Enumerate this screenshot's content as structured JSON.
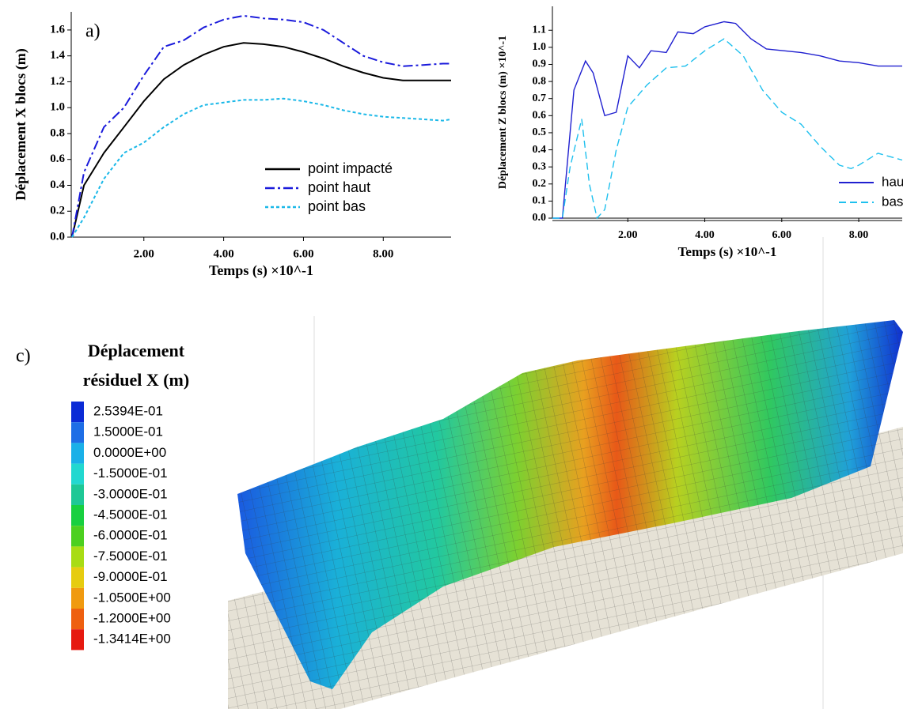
{
  "chart_data": [
    {
      "type": "line",
      "panel_label": "a)",
      "ylabel": "Déplacement X blocs (m)",
      "xlabel": "Temps (s) ×10^-1",
      "xlim": [
        0.18,
        9.7
      ],
      "ylim": [
        0,
        1.74
      ],
      "xticks": [
        {
          "value": 2,
          "label": "2.00"
        },
        {
          "value": 4,
          "label": "4.00"
        },
        {
          "value": 6,
          "label": "6.00"
        },
        {
          "value": 8,
          "label": "8.00"
        }
      ],
      "yticks": [
        {
          "value": 0,
          "label": "0.0"
        },
        0.2,
        0.4,
        0.6,
        0.8,
        {
          "value": 1,
          "label": "1.0"
        },
        1.2,
        1.4,
        1.6
      ],
      "legend": "lower right",
      "x": [
        0.2,
        0.5,
        1,
        1.5,
        2,
        2.5,
        3,
        3.5,
        4,
        4.5,
        5,
        5.5,
        6,
        6.5,
        7,
        7.5,
        8,
        8.5,
        9,
        9.5,
        9.7
      ],
      "series": [
        {
          "name": "point impacté",
          "color": "#000000",
          "dash": "solid",
          "values": [
            0.0,
            0.4,
            0.65,
            0.85,
            1.05,
            1.22,
            1.33,
            1.41,
            1.47,
            1.5,
            1.49,
            1.47,
            1.43,
            1.38,
            1.32,
            1.27,
            1.23,
            1.21,
            1.21,
            1.21,
            1.21
          ]
        },
        {
          "name": "point haut",
          "color": "#1a1adb",
          "dash": "dashdot",
          "values": [
            0.0,
            0.5,
            0.85,
            1.0,
            1.25,
            1.47,
            1.52,
            1.62,
            1.68,
            1.71,
            1.69,
            1.68,
            1.66,
            1.6,
            1.5,
            1.4,
            1.35,
            1.32,
            1.33,
            1.34,
            1.34
          ]
        },
        {
          "name": "point bas",
          "color": "#1ab8e8",
          "dash": "dotted",
          "values": [
            0.0,
            0.15,
            0.45,
            0.65,
            0.73,
            0.85,
            0.95,
            1.02,
            1.04,
            1.06,
            1.06,
            1.07,
            1.05,
            1.02,
            0.98,
            0.95,
            0.93,
            0.92,
            0.91,
            0.9,
            0.91
          ]
        }
      ]
    },
    {
      "type": "line",
      "ylabel": "Déplacement Z blocs (m) ×10^-1",
      "xlabel": "Temps (s) ×10^-1",
      "xlim": [
        0.04,
        9.13
      ],
      "ylim": [
        0,
        1.24
      ],
      "xticks": [
        {
          "value": 2,
          "label": "2.00"
        },
        {
          "value": 4,
          "label": "4.00"
        },
        {
          "value": 6,
          "label": "6.00"
        },
        {
          "value": 8,
          "label": "8.00"
        }
      ],
      "yticks": [
        {
          "value": 0,
          "label": "0.0"
        },
        0.1,
        0.2,
        0.3,
        0.4,
        0.5,
        0.6,
        0.7,
        0.8,
        0.9,
        {
          "value": 1,
          "label": "1.0"
        },
        1.1
      ],
      "legend": "lower right",
      "series": [
        {
          "name": "haut",
          "color": "#2020d0",
          "dash": "solid",
          "x": [
            0.04,
            0.3,
            0.6,
            0.9,
            1.1,
            1.4,
            1.7,
            2.0,
            2.3,
            2.6,
            3.0,
            3.3,
            3.7,
            4.0,
            4.5,
            4.8,
            5.2,
            5.6,
            6.5,
            7.0,
            7.5,
            8.0,
            8.5,
            9.13
          ],
          "values": [
            0.0,
            0.0,
            0.75,
            0.92,
            0.85,
            0.6,
            0.62,
            0.95,
            0.88,
            0.98,
            0.97,
            1.09,
            1.08,
            1.12,
            1.15,
            1.14,
            1.05,
            0.99,
            0.97,
            0.95,
            0.92,
            0.91,
            0.89,
            0.89
          ]
        },
        {
          "name": "bas",
          "color": "#1ec0ee",
          "dash": "dashed",
          "x": [
            0.04,
            0.3,
            0.5,
            0.8,
            1.0,
            1.2,
            1.4,
            1.7,
            2.0,
            2.5,
            3.0,
            3.5,
            4.0,
            4.5,
            5.0,
            5.5,
            6.0,
            6.5,
            7.0,
            7.5,
            7.8,
            8.0,
            8.5,
            9.13
          ],
          "values": [
            0.0,
            0.0,
            0.3,
            0.58,
            0.2,
            0.0,
            0.05,
            0.4,
            0.65,
            0.78,
            0.88,
            0.89,
            0.98,
            1.05,
            0.95,
            0.75,
            0.62,
            0.55,
            0.42,
            0.31,
            0.29,
            0.31,
            0.38,
            0.34
          ]
        }
      ]
    }
  ],
  "colorbar": {
    "panel_label": "c)",
    "title": [
      "Déplacement",
      "résiduel X (m)"
    ],
    "levels": [
      {
        "label": "2.5394E-01",
        "color": "#0b2bd6"
      },
      {
        "label": "1.5000E-01",
        "color": "#1e6ee6"
      },
      {
        "label": "0.0000E+00",
        "color": "#1ab0e8"
      },
      {
        "label": "-1.5000E-01",
        "color": "#22d8d0"
      },
      {
        "label": "-3.0000E-01",
        "color": "#1ec896"
      },
      {
        "label": "-4.5000E-01",
        "color": "#18d040"
      },
      {
        "label": "-6.0000E-01",
        "color": "#4cd020"
      },
      {
        "label": "-7.5000E-01",
        "color": "#a8dc14"
      },
      {
        "label": "-9.0000E-01",
        "color": "#e6cc10"
      },
      {
        "label": "-1.0500E+00",
        "color": "#f09a10"
      },
      {
        "label": "-1.2000E+00",
        "color": "#ee6010"
      },
      {
        "label": "-1.3414E+00",
        "color": "#e61a10"
      }
    ]
  }
}
